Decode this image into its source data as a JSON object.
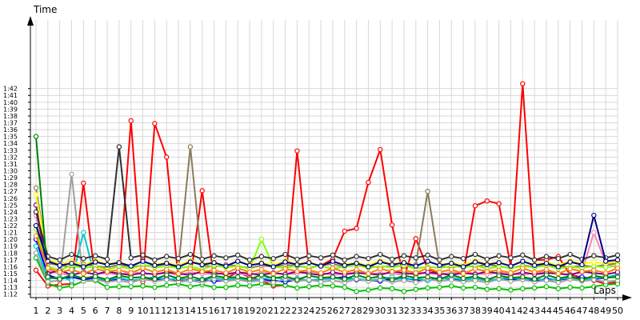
{
  "chart_data": {
    "type": "line",
    "xlabel": "Laps",
    "ylabel": "Time",
    "x": [
      1,
      2,
      3,
      4,
      5,
      6,
      7,
      8,
      9,
      10,
      11,
      12,
      13,
      14,
      15,
      16,
      17,
      18,
      19,
      20,
      21,
      22,
      23,
      24,
      25,
      26,
      27,
      28,
      29,
      30,
      31,
      32,
      33,
      34,
      35,
      36,
      37,
      38,
      39,
      40,
      41,
      42,
      43,
      44,
      45,
      46,
      47,
      48,
      49,
      50
    ],
    "x_tick_labels": [
      "1",
      "2",
      "3",
      "4",
      "5",
      "6",
      "7",
      "8",
      "9",
      "10",
      "11",
      "12",
      "13",
      "14",
      "15",
      "16",
      "17",
      "18",
      "19",
      "20",
      "21",
      "22",
      "23",
      "24",
      "25",
      "26",
      "27",
      "28",
      "29",
      "30",
      "31",
      "32",
      "33",
      "34",
      "35",
      "36",
      "37",
      "38",
      "39",
      "40",
      "41",
      "42",
      "43",
      "44",
      "45",
      "46",
      "47",
      "48",
      "49",
      "50"
    ],
    "y_tick_labels": [
      "1:12",
      "1:13",
      "1:14",
      "1:15",
      "1:16",
      "1:17",
      "1:18",
      "1:19",
      "1:20",
      "1:21",
      "1:22",
      "1:23",
      "1:24",
      "1:25",
      "1:26",
      "1:27",
      "1:28",
      "1:29",
      "1:30",
      "1:31",
      "1:32",
      "1:33",
      "1:34",
      "1:35",
      "1:36",
      "1:37",
      "1:38",
      "1:39",
      "1:40",
      "1:41",
      "1:42"
    ],
    "ylim": [
      71.5,
      112
    ],
    "xlim": [
      1,
      50
    ],
    "grid": true,
    "legend": "none",
    "series": [
      {
        "color": "#ff0000",
        "values": [
          75.5,
          73.2,
          73.4,
          73.5,
          88.2,
          74.1,
          73.9,
          74.2,
          97.3,
          73.8,
          96.9,
          92.0,
          74.1,
          74.2,
          87.1,
          74.0,
          74.3,
          75.2,
          74.5,
          74.0,
          73.2,
          73.3,
          92.9,
          75.8,
          76.2,
          77.1,
          81.2,
          81.6,
          88.3,
          93.1,
          82.1,
          74.3,
          80.1,
          75.7,
          74.9,
          75.1,
          75.0,
          84.9,
          85.6,
          85.2,
          76.0,
          102.7,
          77.0,
          77.0,
          77.5,
          74.8,
          74.5,
          74.0,
          73.5,
          73.8
        ]
      },
      {
        "color": "#00c000",
        "values": [
          77.3,
          73.6,
          72.9,
          73.2,
          73.9,
          74.0,
          73.0,
          73.1,
          73.1,
          73.2,
          73.0,
          73.3,
          73.5,
          73.1,
          73.4,
          73.0,
          73.0,
          73.3,
          73.2,
          73.5,
          73.4,
          73.3,
          72.9,
          73.1,
          73.3,
          73.2,
          73.0,
          72.4,
          72.6,
          72.9,
          72.8,
          72.4,
          72.7,
          72.9,
          73.0,
          73.2,
          72.9,
          73.0,
          72.7,
          72.8,
          72.6,
          72.8,
          72.9,
          73.1,
          72.8,
          73.0,
          72.9,
          73.1,
          73.4,
          73.5
        ]
      },
      {
        "color": "#0000ff",
        "values": [
          80.0,
          74.8,
          74.2,
          74.5,
          74.1,
          74.4,
          73.9,
          74.3,
          74.0,
          74.2,
          74.1,
          74.3,
          73.8,
          74.0,
          74.1,
          73.9,
          74.0,
          74.2,
          73.9,
          74.1,
          74.0,
          73.8,
          74.1,
          74.0,
          74.2,
          74.3,
          74.5,
          74.1,
          74.0,
          73.9,
          74.2,
          74.3,
          74.1,
          74.0,
          74.4,
          74.2,
          74.1,
          74.3,
          74.0,
          74.2,
          74.1,
          74.3,
          74.0,
          74.2,
          74.1,
          74.3,
          74.5,
          74.2,
          74.4,
          74.8
        ]
      },
      {
        "color": "#ff80c0",
        "values": [
          83.5,
          75.5,
          75.0,
          74.8,
          75.2,
          74.9,
          75.1,
          74.8,
          75.3,
          75.0,
          74.9,
          75.1,
          74.8,
          75.2,
          75.0,
          74.9,
          75.1,
          75.0,
          74.8,
          75.2,
          75.1,
          74.9,
          75.0,
          75.3,
          75.1,
          74.8,
          75.0,
          75.2,
          74.9,
          75.1,
          75.0,
          74.8,
          75.2,
          75.0,
          74.9,
          75.1,
          75.3,
          75.0,
          74.9,
          75.2,
          75.0,
          74.8,
          75.1,
          75.3,
          75.0,
          74.9,
          75.2,
          81.0,
          76.5,
          75.8
        ]
      },
      {
        "color": "#8b7d5a",
        "values": [
          87.5,
          76.5,
          76.2,
          76.0,
          76.4,
          76.1,
          75.9,
          76.3,
          76.0,
          76.2,
          76.1,
          76.4,
          75.9,
          93.5,
          76.2,
          76.0,
          76.3,
          76.1,
          75.8,
          76.2,
          76.0,
          76.3,
          76.1,
          75.9,
          76.2,
          76.4,
          76.0,
          76.3,
          76.1,
          75.9,
          76.2,
          76.0,
          76.3,
          87.0,
          76.1,
          75.9,
          76.2,
          76.0,
          76.3,
          76.1,
          75.8,
          76.2,
          76.0,
          76.3,
          76.1,
          75.9,
          76.2,
          76.0,
          76.3,
          76.5
        ]
      },
      {
        "color": "#00c8c8",
        "values": [
          79.0,
          74.2,
          74.5,
          74.0,
          81.0,
          74.3,
          74.1,
          74.4,
          74.0,
          74.2,
          74.5,
          74.1,
          74.3,
          74.0,
          74.2,
          74.4,
          74.1,
          74.3,
          74.0,
          74.2,
          74.5,
          74.1,
          74.3,
          74.0,
          74.2,
          74.4,
          74.1,
          74.3,
          74.0,
          74.2,
          74.5,
          74.1,
          74.3,
          74.0,
          74.2,
          74.4,
          74.1,
          74.3,
          74.0,
          74.2,
          74.5,
          74.1,
          74.3,
          74.0,
          74.2,
          74.4,
          74.1,
          74.3,
          74.5,
          74.8
        ]
      },
      {
        "color": "#80ff00",
        "values": [
          81.5,
          76.0,
          75.5,
          76.2,
          75.8,
          76.1,
          75.6,
          76.0,
          75.7,
          76.3,
          75.9,
          76.1,
          75.8,
          76.0,
          75.6,
          76.2,
          75.9,
          76.1,
          75.7,
          80.0,
          76.0,
          75.8,
          76.2,
          75.9,
          76.1,
          75.7,
          76.0,
          76.3,
          75.8,
          76.1,
          75.9,
          76.2,
          75.7,
          76.0,
          75.8,
          76.1,
          75.9,
          76.2,
          75.7,
          76.0,
          75.8,
          76.1,
          75.9,
          76.2,
          75.7,
          76.0,
          75.8,
          76.1,
          75.9,
          76.2
        ]
      },
      {
        "color": "#800080",
        "values": [
          85.0,
          75.0,
          75.5,
          74.8,
          75.2,
          74.9,
          75.3,
          75.0,
          74.8,
          75.1,
          74.9,
          75.2,
          75.0,
          74.8,
          75.3,
          75.1,
          74.9,
          75.2,
          75.0,
          74.8,
          75.1,
          74.9,
          75.3,
          75.0,
          74.8,
          75.2,
          74.9,
          75.1,
          75.0,
          74.8,
          75.3,
          75.1,
          74.9,
          75.2,
          75.0,
          74.8,
          75.1,
          74.9,
          75.3,
          75.0,
          74.8,
          75.2,
          74.9,
          75.1,
          75.0,
          74.8,
          75.3,
          75.1,
          74.9,
          75.2
        ]
      },
      {
        "color": "#ffff00",
        "values": [
          86.5,
          77.0,
          76.5,
          76.8,
          76.2,
          76.9,
          76.4,
          76.7,
          76.1,
          76.8,
          76.3,
          76.6,
          76.2,
          76.9,
          76.4,
          76.7,
          76.1,
          76.8,
          76.3,
          76.6,
          76.2,
          76.9,
          76.4,
          76.7,
          76.1,
          76.8,
          76.3,
          76.6,
          76.2,
          76.9,
          76.4,
          76.7,
          76.1,
          76.8,
          76.3,
          76.6,
          76.2,
          76.9,
          76.4,
          76.7,
          76.1,
          76.8,
          76.3,
          76.6,
          76.2,
          76.9,
          76.4,
          76.7,
          76.5,
          76.8
        ]
      },
      {
        "color": "#a0a0a0",
        "values": [
          78.0,
          73.8,
          74.0,
          89.5,
          73.9,
          74.1,
          73.8,
          74.0,
          73.7,
          74.2,
          73.9,
          74.1,
          73.8,
          74.0,
          73.7,
          74.2,
          73.9,
          74.1,
          73.8,
          74.0,
          73.7,
          74.2,
          73.9,
          74.1,
          73.8,
          74.0,
          73.7,
          74.2,
          73.9,
          74.1,
          73.8,
          74.0,
          73.7,
          74.2,
          73.9,
          74.1,
          73.8,
          74.0,
          73.7,
          74.2,
          73.9,
          74.1,
          73.8,
          74.0,
          73.7,
          74.2,
          73.9,
          74.1,
          73.8,
          74.0
        ]
      },
      {
        "color": "#303030",
        "values": [
          84.0,
          77.5,
          77.0,
          77.8,
          77.2,
          77.6,
          77.1,
          93.5,
          77.3,
          77.7,
          77.0,
          77.5,
          77.2,
          77.8,
          77.1,
          77.6,
          77.3,
          77.7,
          77.0,
          77.5,
          77.2,
          77.8,
          77.1,
          77.6,
          77.3,
          77.7,
          77.0,
          77.5,
          77.2,
          77.8,
          77.1,
          77.6,
          77.3,
          77.7,
          77.0,
          77.5,
          77.2,
          77.8,
          77.1,
          77.6,
          77.3,
          77.7,
          77.0,
          77.5,
          77.2,
          77.8,
          77.1,
          77.6,
          77.3,
          77.7
        ]
      },
      {
        "color": "#008000",
        "values": [
          95.0,
          74.5,
          74.2,
          74.8,
          74.3,
          74.6,
          74.1,
          74.7,
          74.4,
          74.5,
          74.2,
          74.8,
          74.3,
          74.6,
          74.1,
          74.7,
          74.4,
          74.5,
          74.2,
          74.8,
          74.3,
          74.6,
          74.1,
          74.7,
          74.4,
          74.5,
          74.2,
          74.8,
          74.3,
          74.6,
          74.1,
          74.7,
          74.4,
          74.5,
          74.2,
          74.8,
          74.3,
          74.6,
          74.1,
          74.7,
          74.4,
          74.5,
          74.2,
          74.8,
          74.3,
          74.6,
          74.1,
          74.7,
          74.4,
          74.5
        ]
      },
      {
        "color": "#000080",
        "values": [
          82.0,
          76.8,
          76.2,
          76.5,
          76.0,
          76.7,
          76.3,
          76.6,
          76.1,
          76.8,
          76.2,
          76.5,
          76.0,
          76.7,
          76.3,
          76.6,
          76.1,
          76.8,
          76.2,
          76.5,
          76.0,
          76.7,
          76.3,
          76.6,
          76.1,
          76.8,
          76.2,
          76.5,
          76.0,
          76.7,
          76.3,
          76.6,
          76.1,
          76.8,
          76.2,
          76.5,
          76.0,
          76.7,
          76.3,
          76.6,
          76.1,
          76.8,
          76.2,
          76.5,
          76.0,
          76.7,
          76.3,
          83.5,
          76.8,
          77.0
        ]
      },
      {
        "color": "#ff8000",
        "values": [
          80.5,
          75.8,
          75.2,
          75.6,
          75.0,
          75.7,
          75.3,
          75.5,
          75.1,
          75.8,
          75.2,
          75.6,
          75.0,
          75.7,
          75.3,
          75.5,
          75.1,
          75.8,
          75.2,
          75.6,
          75.0,
          75.7,
          75.3,
          75.5,
          75.1,
          75.8,
          75.2,
          75.6,
          75.0,
          75.7,
          75.3,
          75.5,
          75.1,
          75.8,
          75.2,
          75.6,
          75.0,
          75.7,
          75.3,
          75.5,
          75.1,
          75.8,
          75.2,
          75.6,
          75.0,
          75.7,
          75.3,
          75.5,
          75.1,
          75.8
        ]
      }
    ]
  }
}
